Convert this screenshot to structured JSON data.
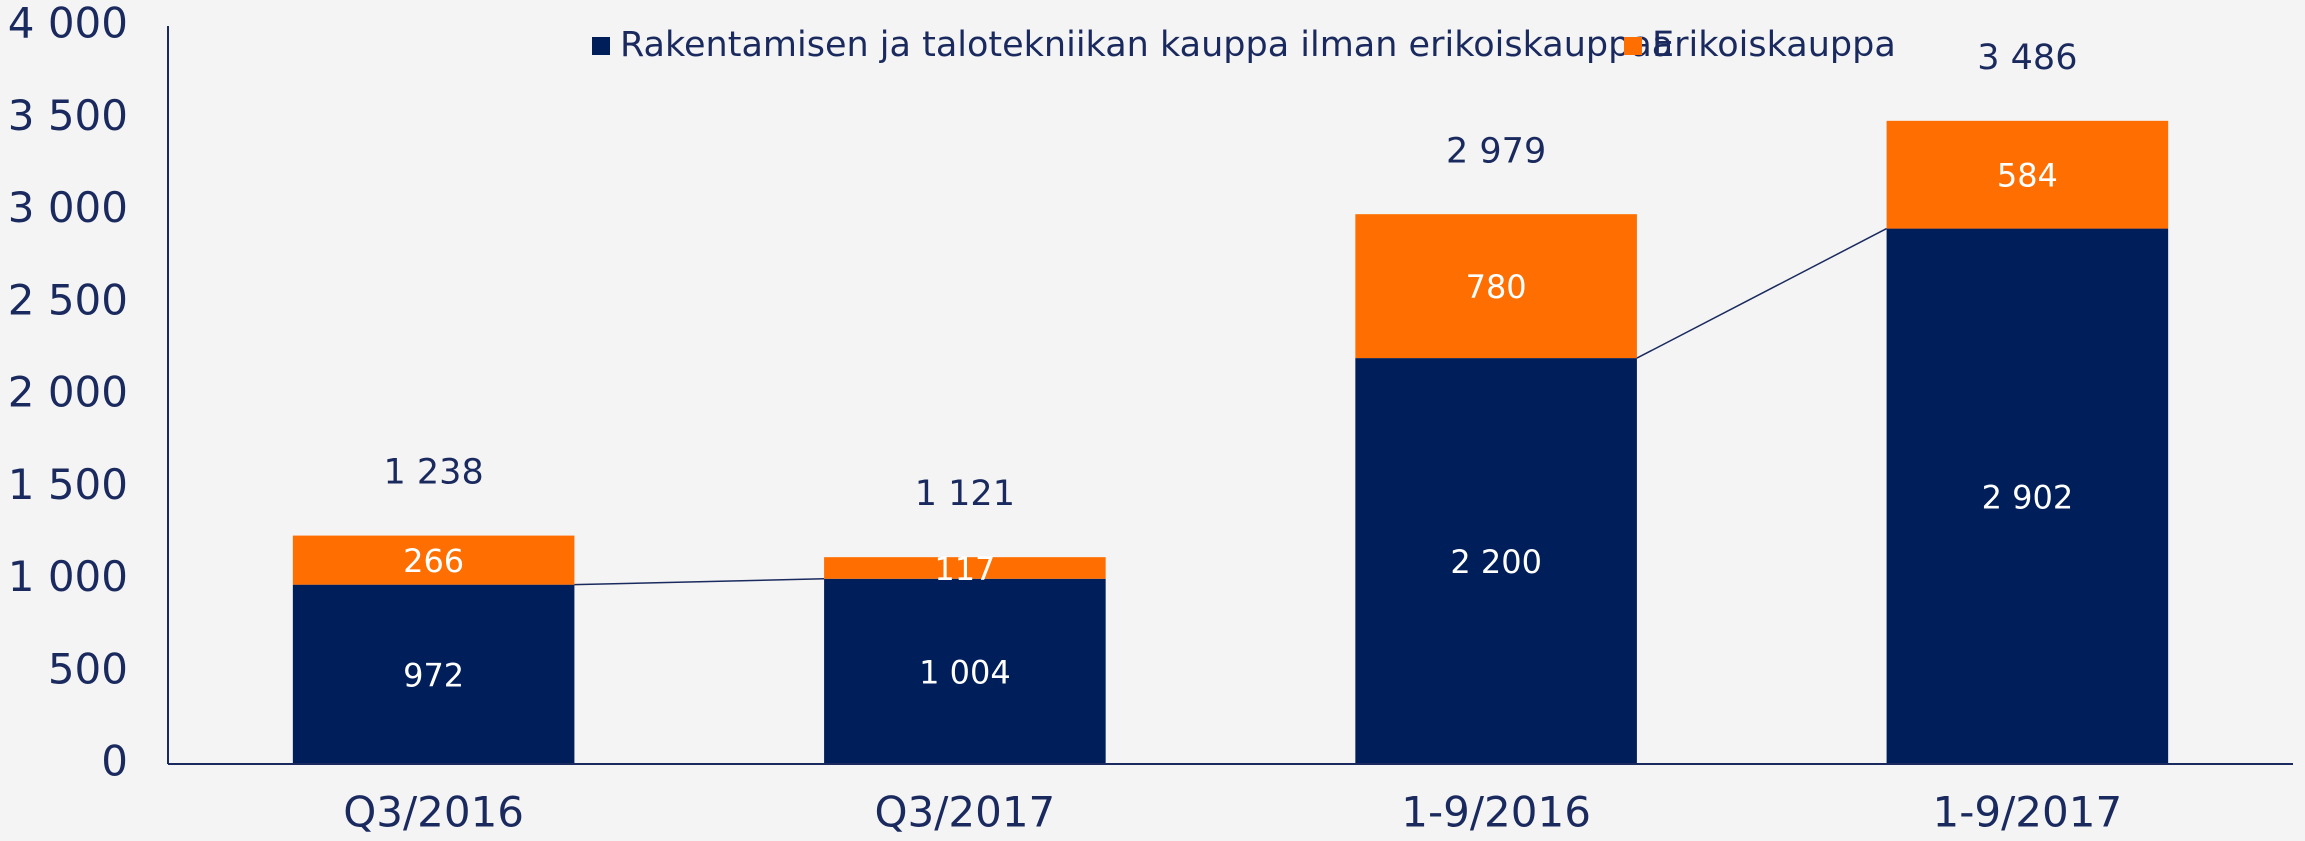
{
  "chart_data": {
    "type": "stacked_bar",
    "categories": [
      "Q3/2016",
      "Q3/2017",
      "1-9/2016",
      "1-9/2017"
    ],
    "series": [
      {
        "name": "Rakentamisen ja talotekniikan kauppa ilman erikoiskauppaa",
        "color": "#001e5a",
        "values": [
          972,
          1004,
          2200,
          2902
        ],
        "value_labels": [
          "972",
          "1 004",
          "2 200",
          "2 902"
        ]
      },
      {
        "name": "Erikoiskauppa",
        "color": "#ff6e00",
        "values": [
          266,
          117,
          780,
          584
        ],
        "value_labels": [
          "266",
          "117",
          "780",
          "584"
        ]
      }
    ],
    "totals": {
      "values": [
        1238,
        1121,
        2979,
        3486
      ],
      "value_labels": [
        "1 238",
        "1 121",
        "2 979",
        "3 486"
      ]
    },
    "ylim": [
      0,
      4000
    ],
    "yticks": [
      0,
      500,
      {
        "value": 1000,
        "label": "1 000"
      },
      {
        "value": 1500,
        "label": "1 500"
      },
      {
        "value": 2000,
        "label": "2 000"
      },
      {
        "value": 2500,
        "label": "2 500"
      },
      {
        "value": 3000,
        "label": "3 000"
      },
      {
        "value": 3500,
        "label": "3 500"
      },
      {
        "value": 4000,
        "label": "4 000"
      }
    ],
    "legend": "top",
    "grid": false
  }
}
